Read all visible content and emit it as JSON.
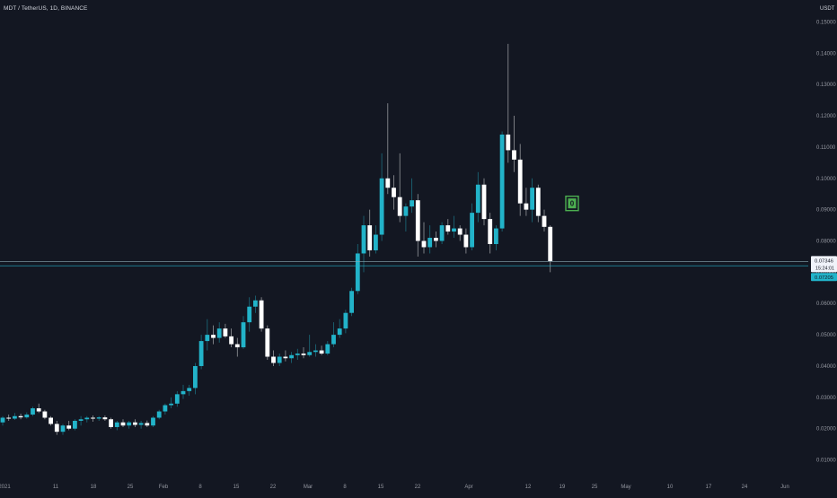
{
  "header": {
    "symbol": "MDT / TetherUS, 1D, BINANCE",
    "currency": "USDT"
  },
  "colors": {
    "background": "#131722",
    "up": "#22b3c9",
    "down": "#ffffff",
    "axis_text": "#9598a1",
    "hline": "#8aa9b3",
    "marker": "#4caf50"
  },
  "price_axis": {
    "ticks": [
      "0.15000",
      "0.14000",
      "0.13000",
      "0.12000",
      "0.11000",
      "0.10000",
      "0.09000",
      "0.08000",
      "0.07000",
      "0.06000",
      "0.05000",
      "0.04000",
      "0.03000",
      "0.02000",
      "0.01000"
    ],
    "current_price": "0.07346",
    "countdown": "15:24:01",
    "line_price": "0.07205"
  },
  "time_axis": {
    "labels": [
      "2021",
      "11",
      "18",
      "25",
      "Feb",
      "8",
      "15",
      "22",
      "Mar",
      "8",
      "15",
      "22",
      "Apr",
      "12",
      "19",
      "25",
      "May",
      "10",
      "17",
      "24",
      "Jun"
    ]
  },
  "marker": {
    "label": "0"
  },
  "chart_data": {
    "type": "candlestick",
    "ylim": [
      0.005,
      0.153
    ],
    "y_ticks": [
      0.15,
      0.14,
      0.13,
      0.12,
      0.11,
      0.1,
      0.09,
      0.08,
      0.07,
      0.06,
      0.05,
      0.04,
      0.03,
      0.02,
      0.01
    ],
    "last_price": 0.07346,
    "horizontal_line": 0.07205,
    "candles": [
      [
        0.022,
        0.024,
        0.021,
        0.0235
      ],
      [
        0.0235,
        0.0245,
        0.0225,
        0.0232
      ],
      [
        0.0232,
        0.025,
        0.0228,
        0.024
      ],
      [
        0.024,
        0.0248,
        0.023,
        0.0236
      ],
      [
        0.0236,
        0.0252,
        0.0232,
        0.0245
      ],
      [
        0.0245,
        0.027,
        0.024,
        0.0265
      ],
      [
        0.0265,
        0.028,
        0.025,
        0.0255
      ],
      [
        0.0255,
        0.026,
        0.023,
        0.0235
      ],
      [
        0.0235,
        0.024,
        0.021,
        0.0215
      ],
      [
        0.0215,
        0.0225,
        0.018,
        0.019
      ],
      [
        0.019,
        0.0215,
        0.018,
        0.021
      ],
      [
        0.021,
        0.0225,
        0.0195,
        0.02
      ],
      [
        0.02,
        0.023,
        0.0195,
        0.0225
      ],
      [
        0.0225,
        0.024,
        0.021,
        0.023
      ],
      [
        0.023,
        0.024,
        0.022,
        0.0235
      ],
      [
        0.0235,
        0.0242,
        0.0222,
        0.0232
      ],
      [
        0.0232,
        0.024,
        0.0225,
        0.0236
      ],
      [
        0.0236,
        0.0242,
        0.0225,
        0.023
      ],
      [
        0.023,
        0.0235,
        0.02,
        0.0205
      ],
      [
        0.0205,
        0.0225,
        0.0195,
        0.022
      ],
      [
        0.022,
        0.023,
        0.0205,
        0.021
      ],
      [
        0.021,
        0.0225,
        0.02,
        0.022
      ],
      [
        0.022,
        0.023,
        0.0205,
        0.0212
      ],
      [
        0.0212,
        0.0225,
        0.02,
        0.0218
      ],
      [
        0.0218,
        0.0226,
        0.0205,
        0.021
      ],
      [
        0.021,
        0.024,
        0.0205,
        0.0235
      ],
      [
        0.0235,
        0.026,
        0.023,
        0.0255
      ],
      [
        0.0255,
        0.028,
        0.0245,
        0.0275
      ],
      [
        0.0275,
        0.03,
        0.0265,
        0.028
      ],
      [
        0.028,
        0.032,
        0.027,
        0.031
      ],
      [
        0.031,
        0.034,
        0.0295,
        0.032
      ],
      [
        0.032,
        0.034,
        0.0305,
        0.033
      ],
      [
        0.033,
        0.041,
        0.031,
        0.04
      ],
      [
        0.04,
        0.05,
        0.039,
        0.048
      ],
      [
        0.048,
        0.055,
        0.045,
        0.05
      ],
      [
        0.05,
        0.053,
        0.047,
        0.049
      ],
      [
        0.049,
        0.054,
        0.0475,
        0.052
      ],
      [
        0.052,
        0.0535,
        0.049,
        0.0495
      ],
      [
        0.0495,
        0.052,
        0.046,
        0.047
      ],
      [
        0.047,
        0.049,
        0.043,
        0.046
      ],
      [
        0.046,
        0.056,
        0.0455,
        0.054
      ],
      [
        0.054,
        0.062,
        0.051,
        0.059
      ],
      [
        0.059,
        0.0625,
        0.057,
        0.061
      ],
      [
        0.061,
        0.062,
        0.051,
        0.052
      ],
      [
        0.052,
        0.053,
        0.042,
        0.043
      ],
      [
        0.043,
        0.045,
        0.04,
        0.041
      ],
      [
        0.041,
        0.044,
        0.04,
        0.043
      ],
      [
        0.043,
        0.045,
        0.0415,
        0.0425
      ],
      [
        0.0425,
        0.0445,
        0.041,
        0.0435
      ],
      [
        0.0435,
        0.0455,
        0.042,
        0.044
      ],
      [
        0.044,
        0.046,
        0.0425,
        0.0435
      ],
      [
        0.0435,
        0.05,
        0.043,
        0.0445
      ],
      [
        0.0445,
        0.047,
        0.043,
        0.045
      ],
      [
        0.045,
        0.0465,
        0.0435,
        0.044
      ],
      [
        0.044,
        0.048,
        0.0435,
        0.047
      ],
      [
        0.047,
        0.054,
        0.046,
        0.05
      ],
      [
        0.05,
        0.055,
        0.049,
        0.052
      ],
      [
        0.052,
        0.058,
        0.0505,
        0.057
      ],
      [
        0.057,
        0.065,
        0.056,
        0.064
      ],
      [
        0.064,
        0.079,
        0.063,
        0.076
      ],
      [
        0.076,
        0.088,
        0.07,
        0.085
      ],
      [
        0.085,
        0.09,
        0.075,
        0.077
      ],
      [
        0.077,
        0.085,
        0.076,
        0.082
      ],
      [
        0.082,
        0.108,
        0.08,
        0.1
      ],
      [
        0.1,
        0.124,
        0.095,
        0.097
      ],
      [
        0.097,
        0.101,
        0.09,
        0.094
      ],
      [
        0.094,
        0.108,
        0.086,
        0.088
      ],
      [
        0.088,
        0.092,
        0.083,
        0.091
      ],
      [
        0.091,
        0.1,
        0.089,
        0.093
      ],
      [
        0.093,
        0.095,
        0.075,
        0.08
      ],
      [
        0.08,
        0.086,
        0.076,
        0.078
      ],
      [
        0.078,
        0.085,
        0.076,
        0.081
      ],
      [
        0.081,
        0.083,
        0.078,
        0.08
      ],
      [
        0.08,
        0.086,
        0.079,
        0.085
      ],
      [
        0.085,
        0.087,
        0.082,
        0.083
      ],
      [
        0.083,
        0.088,
        0.081,
        0.084
      ],
      [
        0.084,
        0.085,
        0.08,
        0.082
      ],
      [
        0.082,
        0.084,
        0.076,
        0.078
      ],
      [
        0.078,
        0.092,
        0.077,
        0.089
      ],
      [
        0.089,
        0.102,
        0.086,
        0.098
      ],
      [
        0.098,
        0.1,
        0.085,
        0.087
      ],
      [
        0.087,
        0.089,
        0.076,
        0.079
      ],
      [
        0.079,
        0.085,
        0.077,
        0.084
      ],
      [
        0.084,
        0.115,
        0.083,
        0.114
      ],
      [
        0.114,
        0.143,
        0.105,
        0.109
      ],
      [
        0.109,
        0.12,
        0.102,
        0.106
      ],
      [
        0.106,
        0.111,
        0.088,
        0.092
      ],
      [
        0.092,
        0.097,
        0.088,
        0.09
      ],
      [
        0.09,
        0.1,
        0.086,
        0.097
      ],
      [
        0.097,
        0.098,
        0.086,
        0.088
      ],
      [
        0.088,
        0.09,
        0.083,
        0.0845
      ],
      [
        0.0845,
        0.085,
        0.07,
        0.0735
      ]
    ]
  }
}
